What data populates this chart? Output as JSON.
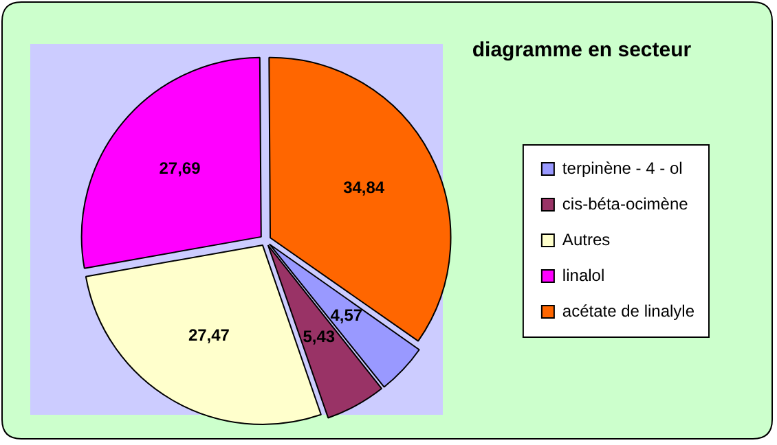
{
  "chart_data": {
    "type": "pie",
    "title": "diagramme en secteur",
    "categories": [
      "terpinène - 4 - ol",
      "cis-béta-ocimène",
      "Autres",
      "linalol",
      "acétate de linalyle"
    ],
    "values": [
      4.57,
      5.43,
      27.47,
      27.69,
      34.84
    ],
    "colors": [
      "#9999ff",
      "#993366",
      "#ffffcc",
      "#ff00ff",
      "#ff6600"
    ],
    "value_labels": [
      "4,57",
      "5,43",
      "27,47",
      "27,69",
      "34,84"
    ],
    "legend": "right"
  }
}
